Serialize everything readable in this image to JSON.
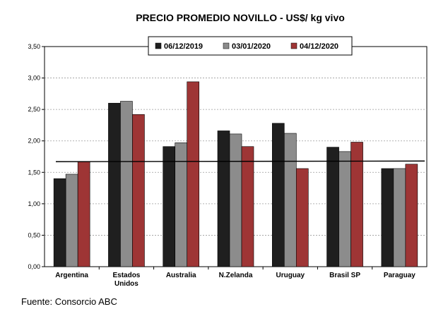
{
  "chart_data": {
    "type": "bar",
    "title": "PRECIO PROMEDIO NOVILLO  - US$/ kg vivo",
    "categories": [
      [
        "Argentina"
      ],
      [
        "Estados",
        "Unidos"
      ],
      [
        "Australia"
      ],
      [
        "N.Zelanda"
      ],
      [
        "Uruguay"
      ],
      [
        "Brasil SP"
      ],
      [
        "Paraguay"
      ]
    ],
    "series": [
      {
        "name": "06/12/2019",
        "color": "#1f1f1f",
        "values": [
          1.4,
          2.6,
          1.91,
          2.16,
          2.28,
          1.9,
          1.56
        ]
      },
      {
        "name": "03/01/2020",
        "color": "#8c8c8c",
        "values": [
          1.47,
          2.63,
          1.97,
          2.11,
          2.12,
          1.83,
          1.56
        ]
      },
      {
        "name": "04/12/2020",
        "color": "#9e3535",
        "values": [
          1.67,
          2.42,
          2.94,
          1.91,
          1.56,
          1.98,
          1.63
        ]
      }
    ],
    "ylim": [
      0,
      3.5
    ],
    "yticks": [
      "0,00",
      "0,50",
      "1,00",
      "1,50",
      "2,00",
      "2,50",
      "3,00",
      "3,50"
    ],
    "grid": true,
    "legend_position": "top-center",
    "reference_line": {
      "y_start": 1.67,
      "y_end": 1.68,
      "color": "#000000"
    }
  },
  "footer": {
    "source": "Fuente: Consorcio ABC"
  }
}
